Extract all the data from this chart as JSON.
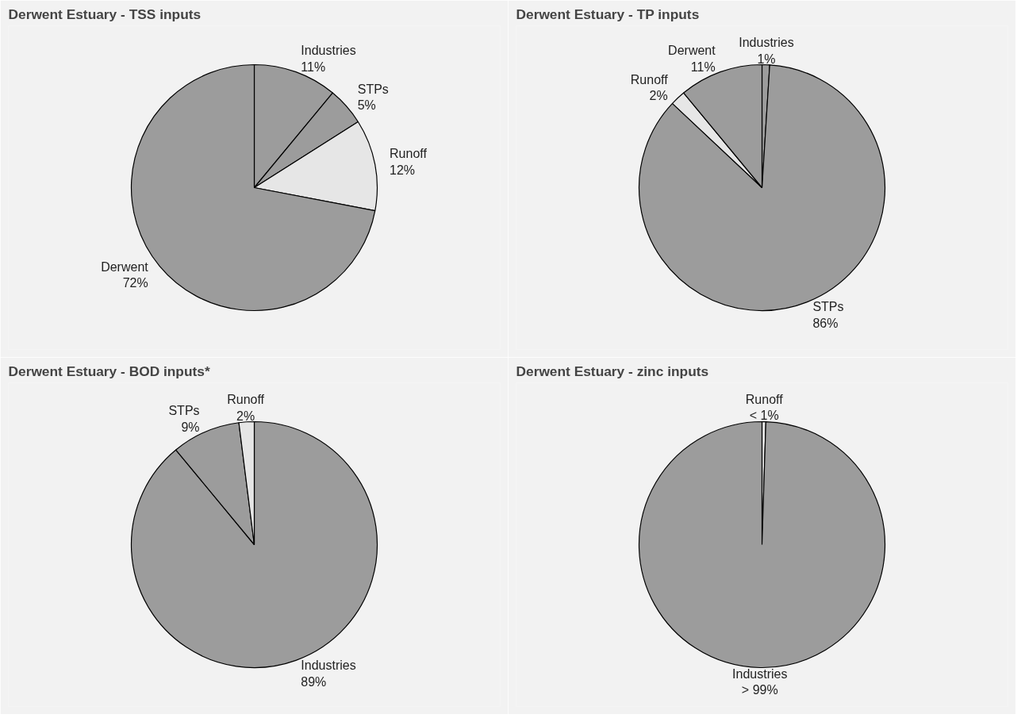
{
  "chart_data": [
    {
      "type": "pie",
      "title": "Derwent Estuary - TSS inputs",
      "categories": [
        "Industries",
        "STPs",
        "Runoff",
        "Derwent"
      ],
      "values": [
        11,
        5,
        12,
        72
      ],
      "colors": [
        "#9c9c9c",
        "#9c9c9c",
        "#e6e6e6",
        "#9c9c9c"
      ],
      "value_labels": [
        "11%",
        "5%",
        "12%",
        "72%"
      ]
    },
    {
      "type": "pie",
      "title": "Derwent Estuary - TP inputs",
      "categories": [
        "Industries",
        "STPs",
        "Runoff",
        "Derwent"
      ],
      "values": [
        1,
        86,
        2,
        11
      ],
      "colors": [
        "#9c9c9c",
        "#9c9c9c",
        "#e6e6e6",
        "#9c9c9c"
      ],
      "value_labels": [
        "1%",
        "86%",
        "2%",
        "11%"
      ]
    },
    {
      "type": "pie",
      "title": "Derwent Estuary - BOD inputs*",
      "categories": [
        "Industries",
        "STPs",
        "Runoff"
      ],
      "values": [
        89,
        9,
        2
      ],
      "colors": [
        "#9c9c9c",
        "#9c9c9c",
        "#e6e6e6"
      ],
      "value_labels": [
        "89%",
        "9%",
        "2%"
      ]
    },
    {
      "type": "pie",
      "title": "Derwent Estuary - zinc inputs",
      "categories": [
        "Runoff",
        "Industries"
      ],
      "values": [
        0.5,
        99.5
      ],
      "colors": [
        "#e6e6e6",
        "#9c9c9c"
      ],
      "value_labels": [
        "< 1%",
        "> 99%"
      ]
    }
  ]
}
